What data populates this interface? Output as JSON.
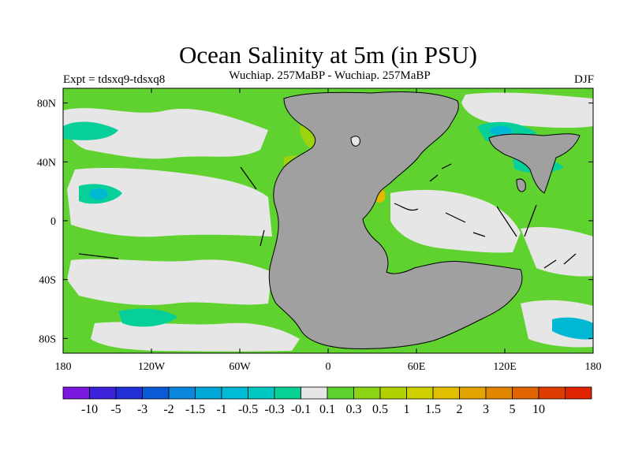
{
  "title": "Ocean Salinity at 5m (in PSU)",
  "subtitle": "Wuchiap. 257MaBP - Wuchiap. 257MaBP",
  "expt_label": "Expt = tdsxq9-tdsxq8",
  "season_label": "DJF",
  "map": {
    "lon_range": [
      -180,
      180
    ],
    "lat_range": [
      -90,
      90
    ],
    "x_ticks": [
      {
        "value": -180,
        "label": "180"
      },
      {
        "value": -120,
        "label": "120W"
      },
      {
        "value": -60,
        "label": "60W"
      },
      {
        "value": 0,
        "label": "0"
      },
      {
        "value": 60,
        "label": "60E"
      },
      {
        "value": 120,
        "label": "120E"
      },
      {
        "value": 180,
        "label": "180"
      }
    ],
    "y_ticks": [
      {
        "value": 80,
        "label": "80N"
      },
      {
        "value": 40,
        "label": "40N"
      },
      {
        "value": 0,
        "label": "0"
      },
      {
        "value": -40,
        "label": "40S"
      },
      {
        "value": -80,
        "label": "80S"
      }
    ],
    "colors": {
      "land": "#a0a0a0",
      "near_zero": "#e6e6e6",
      "positive_light": "#5fd22f",
      "positive_mid": "#9bd30d",
      "positive_high": "#cfd000",
      "positive_strong": "#e4b800",
      "negative_light": "#06cf9a",
      "negative_mid": "#00b8d2",
      "negative_strong": "#0a96de",
      "coast": "#000000"
    }
  },
  "colorbar": {
    "colors": [
      "#7a18e0",
      "#3c22d8",
      "#2030d6",
      "#0a5ad8",
      "#0a86dc",
      "#00a8d8",
      "#00bcd6",
      "#00c8c2",
      "#06d094",
      "#e6e6e6",
      "#5fd22f",
      "#8cd514",
      "#b2d200",
      "#cfd000",
      "#e0c000",
      "#e4a400",
      "#e28600",
      "#e06400",
      "#de3c00",
      "#e02200"
    ],
    "labels": [
      "-10",
      "-5",
      "-3",
      "-2",
      "-1.5",
      "-1",
      "-0.5",
      "-0.3",
      "-0.1",
      "0.1",
      "0.3",
      "0.5",
      "1",
      "1.5",
      "2",
      "3",
      "5",
      "10"
    ]
  }
}
